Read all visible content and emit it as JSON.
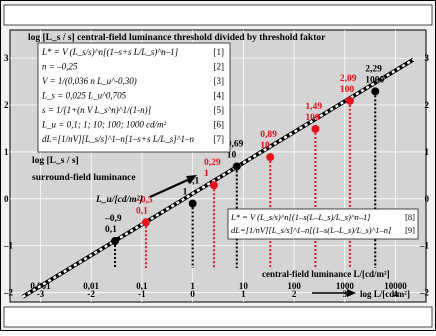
{
  "chart_data": {
    "type": "line",
    "title": "log [L_s / s] central-field luminance threshold divided by threshold faktor",
    "xlabel": "log L/[cd/m²]",
    "ylabel": "log [L_s / s]",
    "xlabel_top": "central-field luminance L/[cd/m²]",
    "xlim": [
      -3.6,
      4.6
    ],
    "ylim": [
      -2.2,
      3.6
    ],
    "x_ticks": [
      "-3",
      "-2",
      "-1",
      "0",
      "1",
      "2",
      "3",
      "4"
    ],
    "y_ticks": [
      "-2",
      "-1",
      "0",
      "1",
      "2",
      "3"
    ],
    "x_top_labels": [
      "0,001",
      "0,01",
      "0,1",
      "1",
      "10",
      "100",
      "1000",
      "10000"
    ],
    "surround_label": "surround-field luminance",
    "surround_unit": "L_u/[cd/m²]",
    "equations_left": [
      {
        "text": "L* = V (L_s/s)^n[(1–s+s L/L_s)^n–1]",
        "num": "[1]"
      },
      {
        "text": "n = –0,25",
        "num": "[2]"
      },
      {
        "text": "V = 1/(0,036 n L_u^-0,30)",
        "num": "[3]"
      },
      {
        "text": "L_s = 0,025 L_u^0,705",
        "num": "[4]"
      },
      {
        "text": "s = 1/[1+(n V L_s^n)^1/(1-n)]",
        "num": "[5]"
      },
      {
        "text": "L_u = 0,1; 1; 10; 100; 1000 cd/m²",
        "num": "[6]"
      },
      {
        "text": "dL=[1/nV][L_s/s]^1–n[1–s+s L/L_s]^1–n",
        "num": "[7]"
      }
    ],
    "equations_right": [
      {
        "text": "L* = V (L_s/s)^n[(1–s(L–L_s)/L_s)^n–1]",
        "num": "[8]"
      },
      {
        "text": "dL=[1/nV][L_s/s]^1–n[(1–s(L–L_s)/L_s)^1–n]",
        "num": "[9]"
      }
    ],
    "series": [
      {
        "name": "black",
        "color": "#000000",
        "points": [
          {
            "x": -1.53,
            "y": -0.9,
            "label_top": "–0,9",
            "label_bottom": "0,1"
          },
          {
            "x": 0.0,
            "y": -0.1,
            "label_top": "–0,1",
            "label_bottom": "1"
          },
          {
            "x": 0.87,
            "y": 0.69,
            "label_top": "0,69",
            "label_bottom": "10"
          },
          {
            "x": 3.6,
            "y": 2.29,
            "label_top": "2,29",
            "label_bottom": "1000"
          }
        ]
      },
      {
        "name": "red",
        "color": "#e8101a",
        "points": [
          {
            "x": -0.92,
            "y": -0.5,
            "label_top": "–0,5",
            "label_bottom": "0,1"
          },
          {
            "x": 0.42,
            "y": 0.29,
            "label_top": "0,29",
            "label_bottom": "1"
          },
          {
            "x": 1.53,
            "y": 0.89,
            "label_top": "0,89",
            "label_bottom": "10"
          },
          {
            "x": 2.42,
            "y": 1.49,
            "label_top": "1,49",
            "label_bottom": "100"
          },
          {
            "x": 3.1,
            "y": 2.09,
            "label_top": "2,09",
            "label_bottom": "100"
          }
        ]
      }
    ],
    "grid": true
  },
  "colors": {
    "plot_bg": "#d4d4d4",
    "frame_bg": "#f2f2f2",
    "red": "#e8101a",
    "black": "#000000"
  }
}
